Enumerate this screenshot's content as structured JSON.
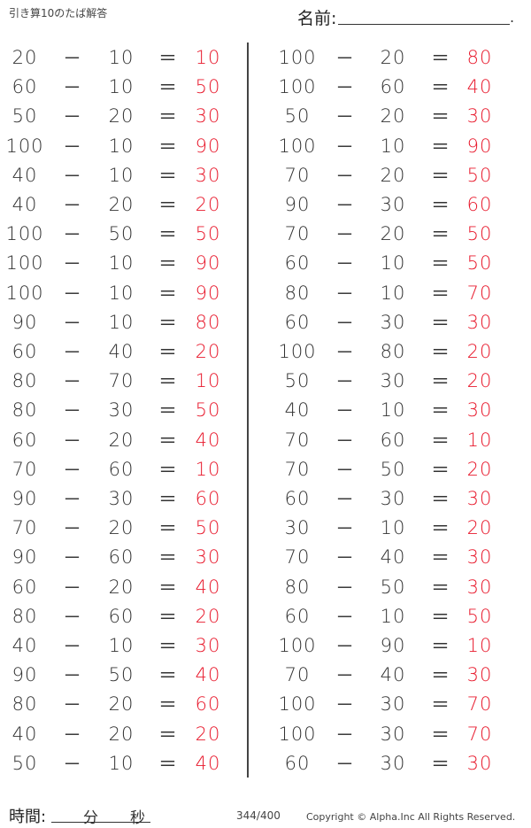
{
  "header": {
    "title": "引き算10のたば解答",
    "name_label": "名前:",
    "name_end": "."
  },
  "symbols": {
    "minus": "－",
    "equals": "＝"
  },
  "colors": {
    "answer": "#e8192c",
    "text": "#333333"
  },
  "left": [
    [
      "20",
      "10",
      "10"
    ],
    [
      "60",
      "10",
      "50"
    ],
    [
      "50",
      "20",
      "30"
    ],
    [
      "100",
      "10",
      "90"
    ],
    [
      "40",
      "10",
      "30"
    ],
    [
      "40",
      "20",
      "20"
    ],
    [
      "100",
      "50",
      "50"
    ],
    [
      "100",
      "10",
      "90"
    ],
    [
      "100",
      "10",
      "90"
    ],
    [
      "90",
      "10",
      "80"
    ],
    [
      "60",
      "40",
      "20"
    ],
    [
      "80",
      "70",
      "10"
    ],
    [
      "80",
      "30",
      "50"
    ],
    [
      "60",
      "20",
      "40"
    ],
    [
      "70",
      "60",
      "10"
    ],
    [
      "90",
      "30",
      "60"
    ],
    [
      "70",
      "20",
      "50"
    ],
    [
      "90",
      "60",
      "30"
    ],
    [
      "60",
      "20",
      "40"
    ],
    [
      "80",
      "60",
      "20"
    ],
    [
      "40",
      "10",
      "30"
    ],
    [
      "90",
      "50",
      "40"
    ],
    [
      "80",
      "20",
      "60"
    ],
    [
      "40",
      "20",
      "20"
    ],
    [
      "50",
      "10",
      "40"
    ]
  ],
  "right": [
    [
      "100",
      "20",
      "80"
    ],
    [
      "100",
      "60",
      "40"
    ],
    [
      "50",
      "20",
      "30"
    ],
    [
      "100",
      "10",
      "90"
    ],
    [
      "70",
      "20",
      "50"
    ],
    [
      "90",
      "30",
      "60"
    ],
    [
      "70",
      "20",
      "50"
    ],
    [
      "60",
      "10",
      "50"
    ],
    [
      "80",
      "10",
      "70"
    ],
    [
      "60",
      "30",
      "30"
    ],
    [
      "100",
      "80",
      "20"
    ],
    [
      "50",
      "30",
      "20"
    ],
    [
      "40",
      "10",
      "30"
    ],
    [
      "70",
      "60",
      "10"
    ],
    [
      "70",
      "50",
      "20"
    ],
    [
      "60",
      "30",
      "30"
    ],
    [
      "30",
      "10",
      "20"
    ],
    [
      "70",
      "40",
      "30"
    ],
    [
      "80",
      "50",
      "30"
    ],
    [
      "60",
      "10",
      "50"
    ],
    [
      "100",
      "90",
      "10"
    ],
    [
      "70",
      "40",
      "30"
    ],
    [
      "100",
      "30",
      "70"
    ],
    [
      "100",
      "30",
      "70"
    ],
    [
      "60",
      "30",
      "30"
    ]
  ],
  "footer": {
    "time_label": "時間:",
    "minutes": "分",
    "seconds": "秒",
    "page": "344/400",
    "copyright": "Copyright ©  Alpha.Inc All Rights Reserved."
  }
}
